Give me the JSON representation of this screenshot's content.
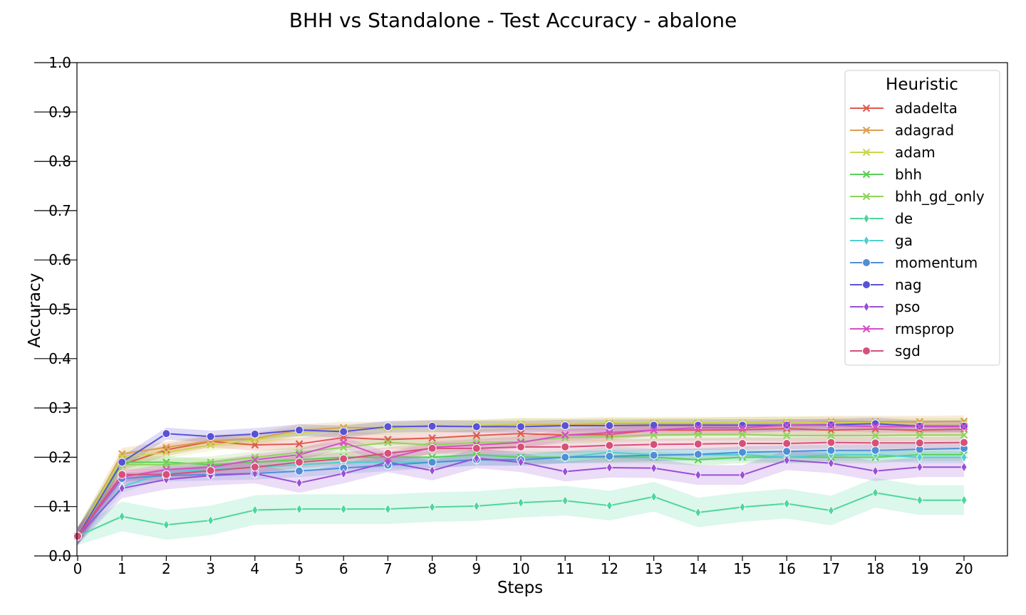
{
  "chart_data": {
    "type": "line",
    "title": "BHH vs Standalone - Test Accuracy - abalone",
    "xlabel": "Steps",
    "ylabel": "Accuracy",
    "xlim": [
      0,
      21
    ],
    "ylim": [
      0,
      1
    ],
    "x_ticks": [
      0,
      1,
      2,
      3,
      4,
      5,
      6,
      7,
      8,
      9,
      10,
      11,
      12,
      13,
      14,
      15,
      16,
      17,
      18,
      19,
      20
    ],
    "y_ticks": [
      "0.0",
      "0.1",
      "0.2",
      "0.3",
      "0.4",
      "0.5",
      "0.6",
      "0.7",
      "0.8",
      "0.9",
      "1.0"
    ],
    "x": [
      0,
      1,
      2,
      3,
      4,
      5,
      6,
      7,
      8,
      9,
      10,
      11,
      12,
      13,
      14,
      15,
      16,
      17,
      18,
      19,
      20
    ],
    "legend": {
      "title": "Heuristic",
      "position": "top-right"
    },
    "grid": false,
    "series": [
      {
        "name": "adadelta",
        "color": "#e05a4f",
        "marker": "x",
        "values": [
          0.04,
          0.185,
          0.215,
          0.232,
          0.225,
          0.227,
          0.24,
          0.236,
          0.239,
          0.244,
          0.248,
          0.245,
          0.246,
          0.255,
          0.255,
          0.256,
          0.258,
          0.255,
          0.257,
          0.255,
          0.257
        ]
      },
      {
        "name": "adagrad",
        "color": "#d9a04f",
        "marker": "x",
        "values": [
          0.04,
          0.207,
          0.22,
          0.233,
          0.238,
          0.255,
          0.26,
          0.26,
          0.264,
          0.263,
          0.267,
          0.266,
          0.268,
          0.268,
          0.268,
          0.27,
          0.27,
          0.272,
          0.272,
          0.272,
          0.273
        ]
      },
      {
        "name": "adam",
        "color": "#c9d64f",
        "marker": "x",
        "values": [
          0.04,
          0.2,
          0.21,
          0.225,
          0.235,
          0.25,
          0.255,
          0.258,
          0.262,
          0.265,
          0.268,
          0.268,
          0.27,
          0.27,
          0.27,
          0.27,
          0.271,
          0.27,
          0.27,
          0.268,
          0.268
        ]
      },
      {
        "name": "bhh",
        "color": "#5bcf55",
        "marker": "x",
        "values": [
          0.04,
          0.19,
          0.19,
          0.185,
          0.19,
          0.195,
          0.2,
          0.2,
          0.2,
          0.205,
          0.2,
          0.2,
          0.2,
          0.2,
          0.195,
          0.2,
          0.2,
          0.2,
          0.2,
          0.205,
          0.205
        ]
      },
      {
        "name": "bhh_gd_only",
        "color": "#8fd45a",
        "marker": "x",
        "values": [
          0.04,
          0.185,
          0.185,
          0.19,
          0.2,
          0.21,
          0.22,
          0.23,
          0.225,
          0.23,
          0.232,
          0.24,
          0.242,
          0.245,
          0.246,
          0.246,
          0.244,
          0.244,
          0.244,
          0.245,
          0.245
        ]
      },
      {
        "name": "de",
        "color": "#4fd69c",
        "marker": "d",
        "values": [
          0.04,
          0.08,
          0.063,
          0.072,
          0.093,
          0.095,
          0.095,
          0.095,
          0.099,
          0.101,
          0.108,
          0.112,
          0.102,
          0.12,
          0.088,
          0.099,
          0.106,
          0.092,
          0.128,
          0.113,
          0.113
        ]
      },
      {
        "name": "ga",
        "color": "#4fcfd1",
        "marker": "d",
        "values": [
          0.04,
          0.14,
          0.17,
          0.175,
          0.18,
          0.185,
          0.19,
          0.19,
          0.19,
          0.195,
          0.195,
          0.2,
          0.21,
          0.205,
          0.205,
          0.205,
          0.2,
          0.205,
          0.205,
          0.2,
          0.2
        ]
      },
      {
        "name": "momentum",
        "color": "#4f8fd6",
        "marker": "o",
        "values": [
          0.04,
          0.157,
          0.163,
          0.165,
          0.167,
          0.172,
          0.178,
          0.184,
          0.19,
          0.195,
          0.195,
          0.2,
          0.202,
          0.204,
          0.206,
          0.21,
          0.212,
          0.214,
          0.214,
          0.216,
          0.218
        ]
      },
      {
        "name": "nag",
        "color": "#5a52d6",
        "marker": "o",
        "values": [
          0.04,
          0.19,
          0.248,
          0.242,
          0.247,
          0.255,
          0.252,
          0.262,
          0.263,
          0.262,
          0.262,
          0.264,
          0.264,
          0.265,
          0.265,
          0.265,
          0.265,
          0.266,
          0.268,
          0.263,
          0.263
        ]
      },
      {
        "name": "pso",
        "color": "#9a4fd6",
        "marker": "d",
        "values": [
          0.04,
          0.137,
          0.155,
          0.163,
          0.167,
          0.148,
          0.167,
          0.19,
          0.173,
          0.198,
          0.19,
          0.171,
          0.179,
          0.178,
          0.164,
          0.164,
          0.194,
          0.188,
          0.172,
          0.18,
          0.18
        ]
      },
      {
        "name": "rmsprop",
        "color": "#d64fc9",
        "marker": "x",
        "values": [
          0.04,
          0.16,
          0.175,
          0.18,
          0.195,
          0.205,
          0.23,
          0.198,
          0.22,
          0.225,
          0.23,
          0.245,
          0.25,
          0.255,
          0.26,
          0.26,
          0.265,
          0.265,
          0.262,
          0.262,
          0.262
        ]
      },
      {
        "name": "sgd",
        "color": "#d6507a",
        "marker": "o",
        "values": [
          0.04,
          0.165,
          0.165,
          0.173,
          0.18,
          0.19,
          0.197,
          0.208,
          0.218,
          0.218,
          0.221,
          0.221,
          0.224,
          0.226,
          0.227,
          0.228,
          0.228,
          0.23,
          0.229,
          0.229,
          0.23
        ]
      }
    ]
  }
}
